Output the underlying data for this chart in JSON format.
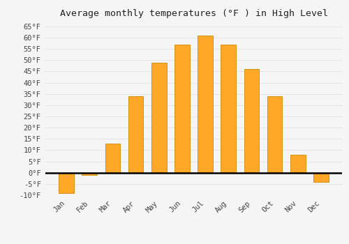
{
  "title": "Average monthly temperatures (°F ) in High Level",
  "months": [
    "Jan",
    "Feb",
    "Mar",
    "Apr",
    "May",
    "Jun",
    "Jul",
    "Aug",
    "Sep",
    "Oct",
    "Nov",
    "Dec"
  ],
  "values": [
    -9,
    -1,
    13,
    34,
    49,
    57,
    61,
    57,
    46,
    34,
    8,
    -4
  ],
  "bar_color": "#FFA726",
  "bar_edge_color": "#CC8800",
  "background_color": "#F5F5F5",
  "ylim": [
    -10,
    67
  ],
  "yticks": [
    -10,
    -5,
    0,
    5,
    10,
    15,
    20,
    25,
    30,
    35,
    40,
    45,
    50,
    55,
    60,
    65
  ],
  "ytick_labels": [
    "-10°F",
    "-5°F",
    "0°F",
    "5°F",
    "10°F",
    "15°F",
    "20°F",
    "25°F",
    "30°F",
    "35°F",
    "40°F",
    "45°F",
    "50°F",
    "55°F",
    "60°F",
    "65°F"
  ],
  "title_fontsize": 9.5,
  "tick_fontsize": 7.5,
  "grid_color": "#DDDDDD",
  "figsize": [
    5.0,
    3.5
  ],
  "dpi": 100
}
